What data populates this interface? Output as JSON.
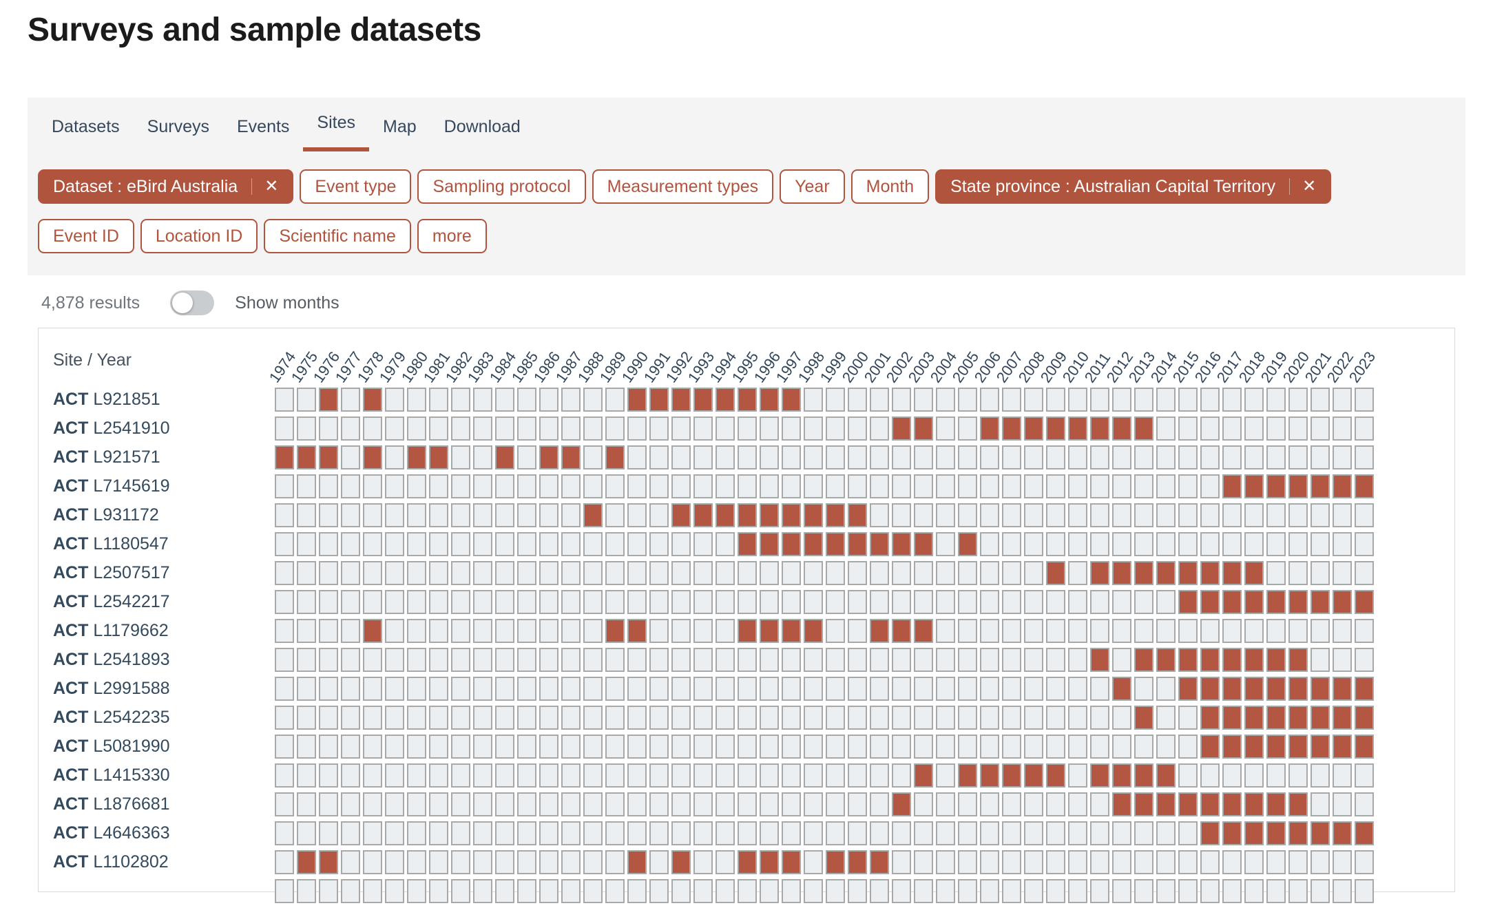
{
  "page_title": "Surveys and sample datasets",
  "tabs": [
    {
      "label": "Datasets",
      "active": false
    },
    {
      "label": "Surveys",
      "active": false
    },
    {
      "label": "Events",
      "active": false
    },
    {
      "label": "Sites",
      "active": true
    },
    {
      "label": "Map",
      "active": false
    },
    {
      "label": "Download",
      "active": false
    }
  ],
  "filters": {
    "close_glyph": "✕",
    "rows": [
      [
        {
          "label": "Dataset : eBird Australia",
          "applied": true,
          "removable": true
        },
        {
          "label": "Event type",
          "applied": false
        },
        {
          "label": "Sampling protocol",
          "applied": false
        },
        {
          "label": "Measurement types",
          "applied": false
        },
        {
          "label": "Year",
          "applied": false
        },
        {
          "label": "Month",
          "applied": false
        },
        {
          "label": "State province : Australian Capital Territory",
          "applied": true,
          "removable": true
        }
      ],
      [
        {
          "label": "Event ID",
          "applied": false
        },
        {
          "label": "Location ID",
          "applied": false
        },
        {
          "label": "Scientific name",
          "applied": false
        },
        {
          "label": "more",
          "applied": false
        }
      ]
    ]
  },
  "results": {
    "count_label": "4,878 results",
    "toggle_label": "Show months",
    "toggle_on": false
  },
  "chart_data": {
    "type": "heatmap",
    "corner_label": "Site / Year",
    "legend": "filled cell = survey events present for that site in that year",
    "years": [
      1974,
      1975,
      1976,
      1977,
      1978,
      1979,
      1980,
      1981,
      1982,
      1983,
      1984,
      1985,
      1986,
      1987,
      1988,
      1989,
      1990,
      1991,
      1992,
      1993,
      1994,
      1995,
      1996,
      1997,
      1998,
      1999,
      2000,
      2001,
      2002,
      2003,
      2004,
      2005,
      2006,
      2007,
      2008,
      2009,
      2010,
      2011,
      2012,
      2013,
      2014,
      2015,
      2016,
      2017,
      2018,
      2019,
      2020,
      2021,
      2022,
      2023
    ],
    "rows": [
      {
        "prefix": "ACT",
        "site": "L921851",
        "filled_years": [
          1976,
          1978,
          1990,
          1991,
          1992,
          1993,
          1994,
          1995,
          1996,
          1997
        ]
      },
      {
        "prefix": "ACT",
        "site": "L2541910",
        "filled_years": [
          2002,
          2003,
          2006,
          2007,
          2008,
          2009,
          2010,
          2011,
          2012,
          2013
        ]
      },
      {
        "prefix": "ACT",
        "site": "L921571",
        "filled_years": [
          1974,
          1975,
          1976,
          1978,
          1980,
          1981,
          1984,
          1986,
          1987,
          1989
        ]
      },
      {
        "prefix": "ACT",
        "site": "L7145619",
        "filled_years": [
          2017,
          2018,
          2019,
          2020,
          2021,
          2022,
          2023
        ]
      },
      {
        "prefix": "ACT",
        "site": "L931172",
        "filled_years": [
          1988,
          1992,
          1993,
          1994,
          1995,
          1996,
          1997,
          1998,
          1999,
          2000
        ]
      },
      {
        "prefix": "ACT",
        "site": "L1180547",
        "filled_years": [
          1995,
          1996,
          1997,
          1998,
          1999,
          2000,
          2001,
          2002,
          2003,
          2005
        ]
      },
      {
        "prefix": "ACT",
        "site": "L2507517",
        "filled_years": [
          2009,
          2011,
          2012,
          2013,
          2014,
          2015,
          2016,
          2017,
          2018
        ]
      },
      {
        "prefix": "ACT",
        "site": "L2542217",
        "filled_years": [
          2015,
          2016,
          2017,
          2018,
          2019,
          2020,
          2021,
          2022,
          2023
        ]
      },
      {
        "prefix": "ACT",
        "site": "L1179662",
        "filled_years": [
          1978,
          1989,
          1990,
          1995,
          1996,
          1997,
          1998,
          2001,
          2002,
          2003
        ]
      },
      {
        "prefix": "ACT",
        "site": "L2541893",
        "filled_years": [
          2011,
          2013,
          2014,
          2015,
          2016,
          2017,
          2018,
          2019,
          2020
        ]
      },
      {
        "prefix": "ACT",
        "site": "L2991588",
        "filled_years": [
          2012,
          2015,
          2016,
          2017,
          2018,
          2019,
          2020,
          2021,
          2022,
          2023
        ]
      },
      {
        "prefix": "ACT",
        "site": "L2542235",
        "filled_years": [
          2013,
          2016,
          2017,
          2018,
          2019,
          2020,
          2021,
          2022,
          2023
        ]
      },
      {
        "prefix": "ACT",
        "site": "L5081990",
        "filled_years": [
          2016,
          2017,
          2018,
          2019,
          2020,
          2021,
          2022,
          2023
        ]
      },
      {
        "prefix": "ACT",
        "site": "L1415330",
        "filled_years": [
          2003,
          2005,
          2006,
          2007,
          2008,
          2009,
          2011,
          2012,
          2013,
          2014
        ]
      },
      {
        "prefix": "ACT",
        "site": "L1876681",
        "filled_years": [
          2002,
          2012,
          2013,
          2014,
          2015,
          2016,
          2017,
          2018,
          2019,
          2020
        ]
      },
      {
        "prefix": "ACT",
        "site": "L4646363",
        "filled_years": [
          2016,
          2017,
          2018,
          2019,
          2020,
          2021,
          2022,
          2023
        ]
      },
      {
        "prefix": "ACT",
        "site": "L1102802",
        "filled_years": [
          1975,
          1976,
          1990,
          1992,
          1995,
          1996,
          1997,
          1999,
          2000,
          2001
        ]
      }
    ],
    "partial_row_visible": true
  },
  "colors": {
    "accent": "#b1543e",
    "cell_filled": "#b35642",
    "cell_empty": "#eceff1",
    "cell_border": "#a8a8a8",
    "panel_bg": "#f4f4f5"
  }
}
